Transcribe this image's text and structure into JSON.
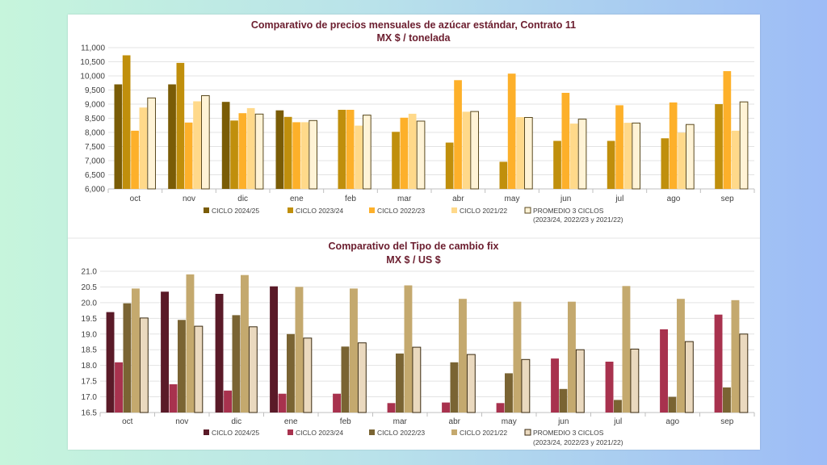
{
  "chart_data": [
    {
      "type": "bar",
      "title": "Comparativo de precios mensuales de azúcar estándar, Contrato 11",
      "subtitle": "MX $ / tonelada",
      "categories": [
        "oct",
        "nov",
        "dic",
        "ene",
        "feb",
        "mar",
        "abr",
        "may",
        "jun",
        "jul",
        "ago",
        "sep"
      ],
      "ylim": [
        6000,
        11000
      ],
      "yticks": [
        "6,000",
        "6,500",
        "7,000",
        "7,500",
        "8,000",
        "8,500",
        "9,000",
        "9,500",
        "10,000",
        "10,500",
        "11,000"
      ],
      "series": [
        {
          "name": "CICLO 2024/25",
          "color": "#7a5c06",
          "values": [
            9700,
            9700,
            9080,
            8780,
            null,
            null,
            null,
            null,
            null,
            null,
            null,
            null
          ]
        },
        {
          "name": "CICLO 2023/24",
          "color": "#c08f0c",
          "values": [
            10730,
            10460,
            8420,
            8550,
            8800,
            8020,
            7640,
            6960,
            7700,
            7700,
            7790,
            9000
          ]
        },
        {
          "name": "CICLO 2022/23",
          "color": "#fdb02a",
          "values": [
            8060,
            8350,
            8680,
            8360,
            8800,
            8520,
            9850,
            10080,
            9400,
            8960,
            9060,
            10170
          ]
        },
        {
          "name": "CICLO 2021/22",
          "color": "#ffd98a",
          "values": [
            8880,
            9100,
            8860,
            8360,
            8240,
            8660,
            8730,
            8540,
            8310,
            8340,
            7990,
            8060
          ]
        },
        {
          "name": "PROMEDIO 3 CICLOS",
          "name2": "(2023/24, 2022/23 y 2021/22)",
          "color": "#fff3d6",
          "stroke": "#5a4a20",
          "values": [
            9220,
            9300,
            8650,
            8420,
            8610,
            8400,
            8740,
            8530,
            8470,
            8330,
            8280,
            9080
          ]
        }
      ]
    },
    {
      "type": "bar",
      "title": "Comparativo del Tipo de cambio fix",
      "subtitle": "MX $ / US $",
      "categories": [
        "oct",
        "nov",
        "dic",
        "ene",
        "feb",
        "mar",
        "abr",
        "may",
        "jun",
        "jul",
        "ago",
        "sep"
      ],
      "ylim": [
        16.5,
        21.0
      ],
      "yticks": [
        "16.5",
        "17.0",
        "17.5",
        "18.0",
        "18.5",
        "19.0",
        "19.5",
        "20.0",
        "20.5",
        "21.0"
      ],
      "series": [
        {
          "name": "CICLO 2024/25",
          "color": "#5a1a28",
          "values": [
            19.7,
            20.35,
            20.28,
            20.52,
            null,
            null,
            null,
            null,
            null,
            null,
            null,
            null
          ]
        },
        {
          "name": "CICLO 2023/24",
          "color": "#a8324e",
          "values": [
            18.1,
            17.4,
            17.2,
            17.1,
            17.1,
            16.8,
            16.82,
            16.8,
            18.22,
            18.12,
            19.15,
            19.62
          ]
        },
        {
          "name": "CICLO 2022/23",
          "color": "#7a6433",
          "values": [
            19.98,
            19.45,
            19.6,
            19.0,
            18.6,
            18.38,
            18.1,
            17.75,
            17.25,
            16.9,
            17.0,
            17.3
          ]
        },
        {
          "name": "CICLO 2021/22",
          "color": "#c4a96e",
          "values": [
            20.45,
            20.9,
            20.88,
            20.5,
            20.45,
            20.55,
            20.12,
            20.03,
            20.03,
            20.53,
            20.12,
            20.08
          ]
        },
        {
          "name": "PROMEDIO 3 CICLOS",
          "name2": "(2023/24, 2022/23 y 2021/22)",
          "color": "#ead9bf",
          "stroke": "#3a2a10",
          "values": [
            19.51,
            19.25,
            19.23,
            18.87,
            18.72,
            18.58,
            18.35,
            18.19,
            18.5,
            18.52,
            18.76,
            19.0
          ]
        }
      ]
    }
  ]
}
